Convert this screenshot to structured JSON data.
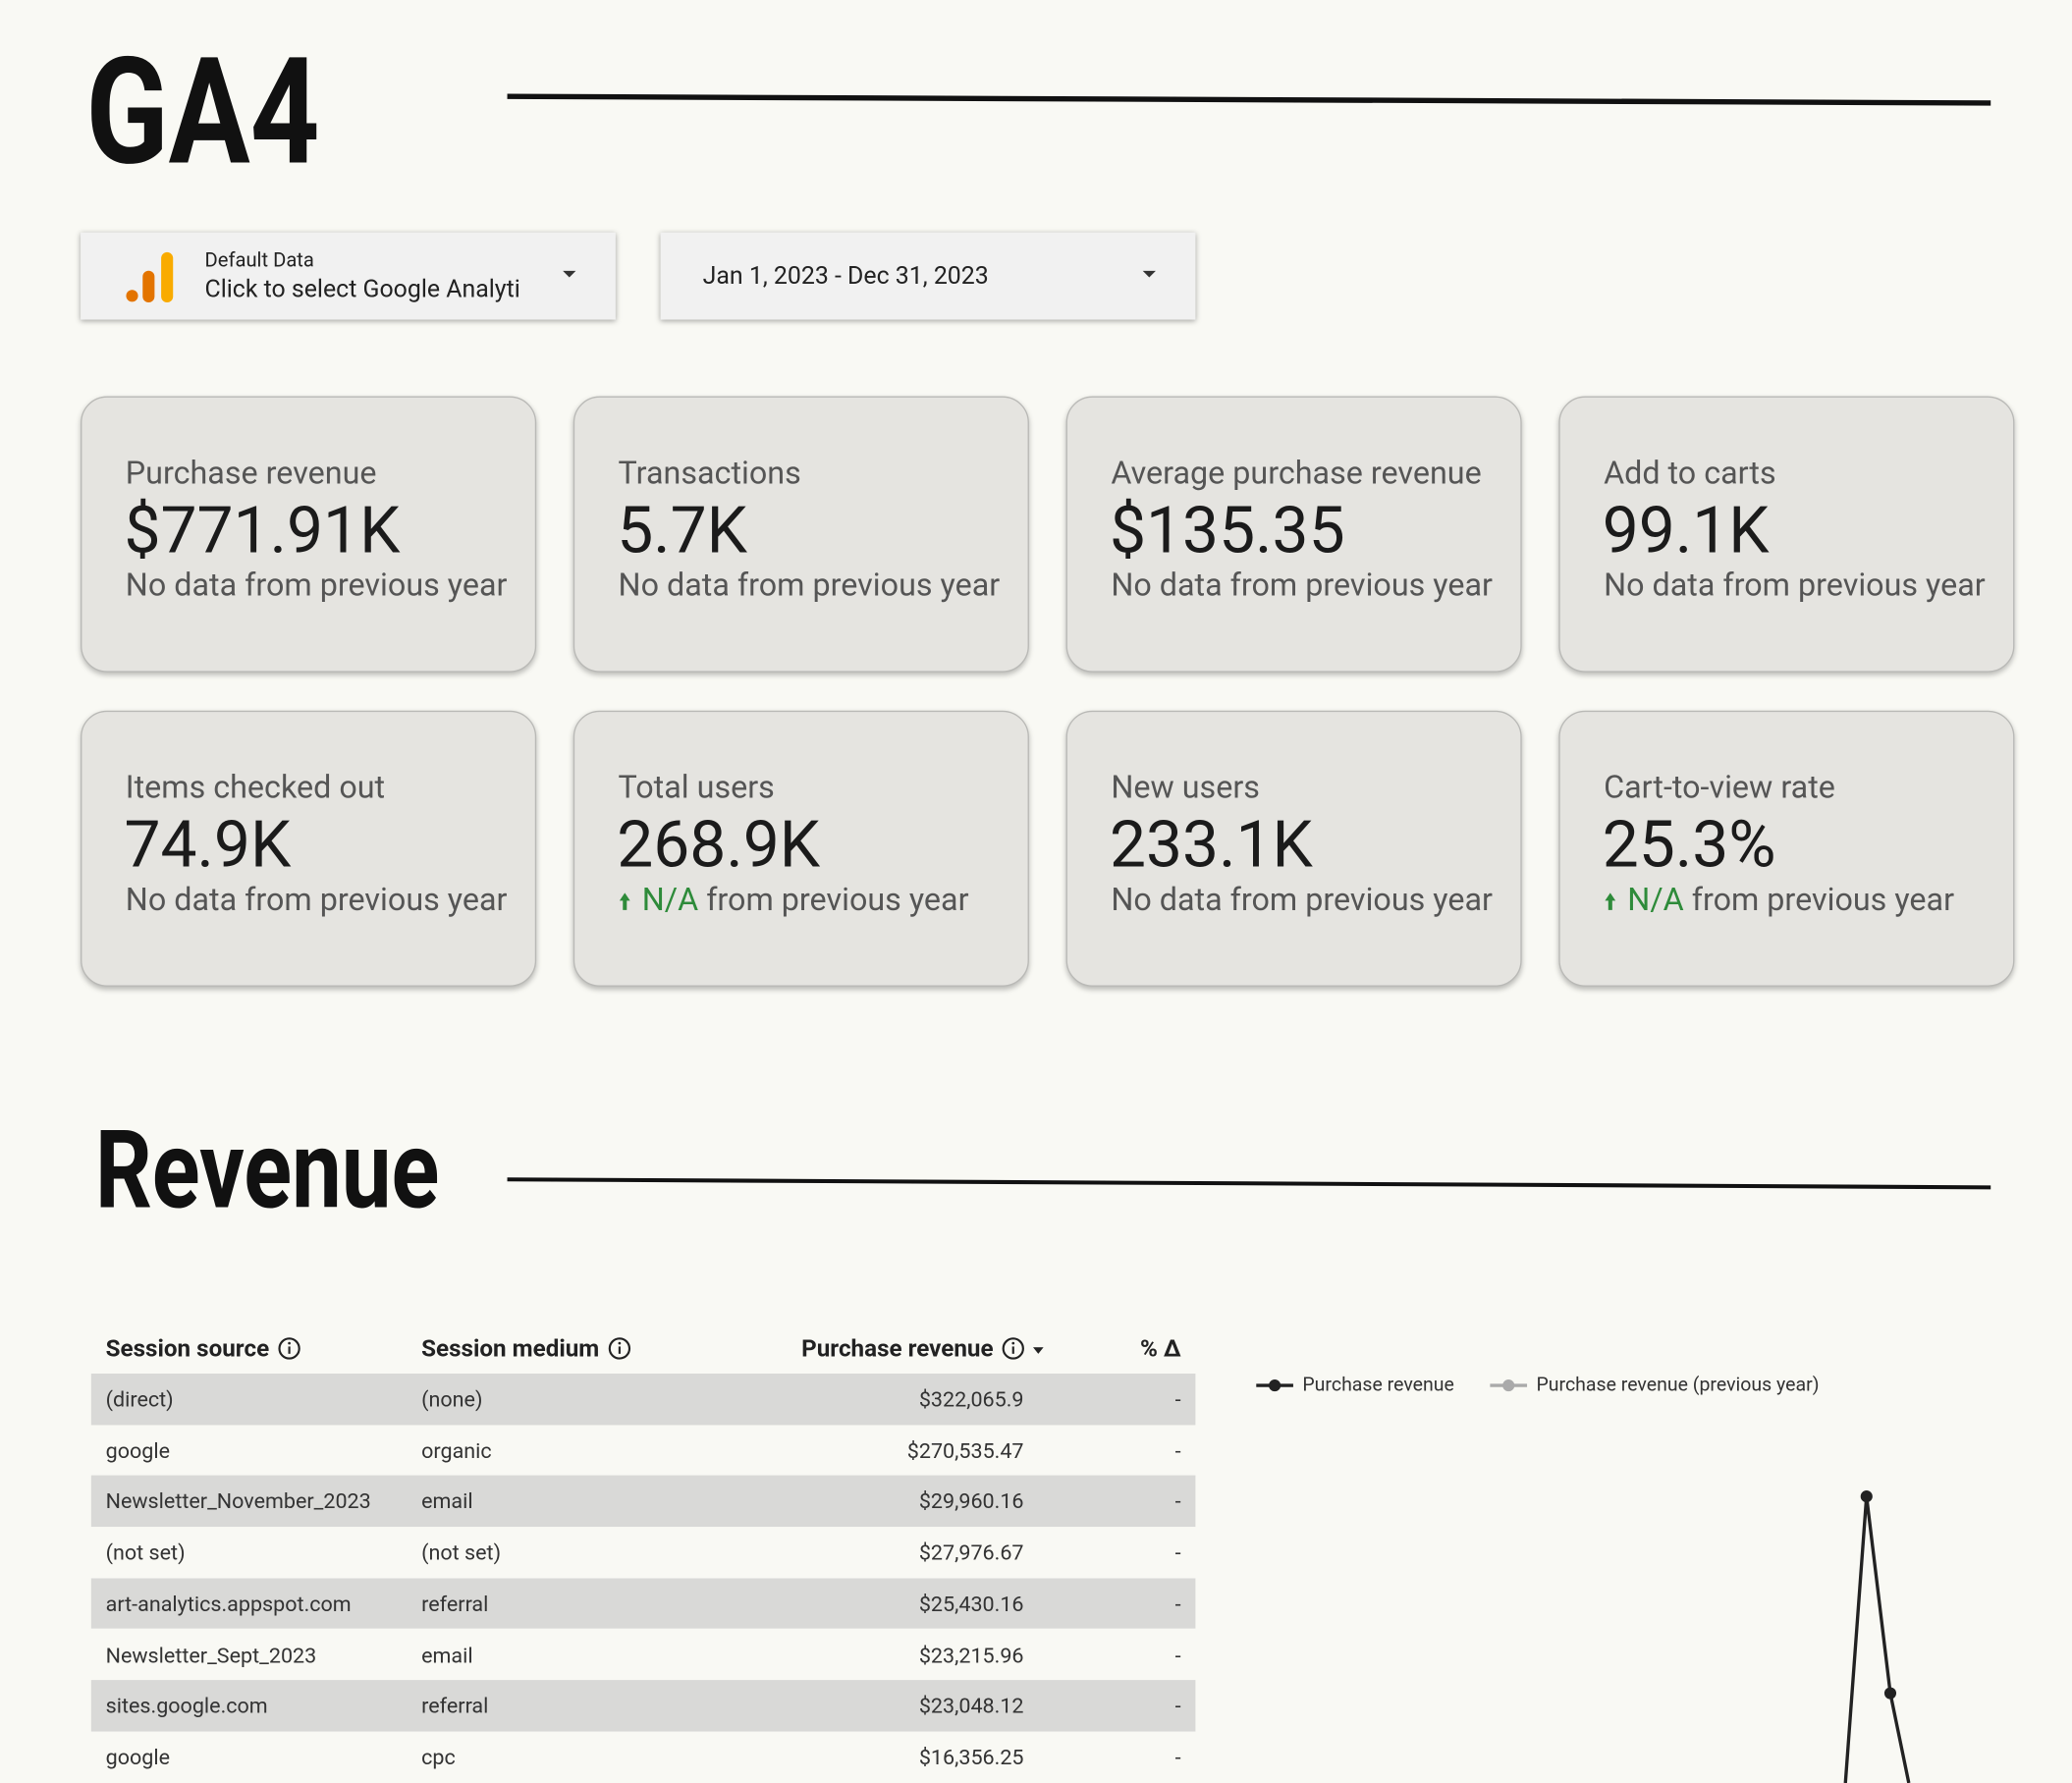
{
  "header": {
    "title": "GA4"
  },
  "controls": {
    "data_source": {
      "label": "Default Data",
      "value": "Click to select Google Analyti"
    },
    "date_range": "Jan 1, 2023 - Dec 31, 2023"
  },
  "scorecards": [
    {
      "label": "Purchase revenue",
      "value": "$771.91K",
      "comparison": "No data from previous year"
    },
    {
      "label": "Transactions",
      "value": "5.7K",
      "comparison": "No data from previous year"
    },
    {
      "label": "Average purchase revenue",
      "value": "$135.35",
      "comparison": "No data from previous year"
    },
    {
      "label": "Add to carts",
      "value": "99.1K",
      "comparison": "No data from previous year"
    },
    {
      "label": "Items checked out",
      "value": "74.9K",
      "comparison": "No data from previous year"
    },
    {
      "label": "Total users",
      "value": "268.9K",
      "delta": "N/A",
      "comparison": "from previous year"
    },
    {
      "label": "New users",
      "value": "233.1K",
      "comparison": "No data from previous year"
    },
    {
      "label": "Cart-to-view rate",
      "value": "25.3%",
      "delta": "N/A",
      "comparison": "from previous year"
    }
  ],
  "section": {
    "title": "Revenue"
  },
  "table": {
    "columns": [
      "Session source",
      "Session medium",
      "Purchase revenue",
      "% Δ"
    ],
    "rows": [
      [
        "(direct)",
        "(none)",
        "$322,065.9",
        "-"
      ],
      [
        "google",
        "organic",
        "$270,535.47",
        "-"
      ],
      [
        "Newsletter_November_2023",
        "email",
        "$29,960.16",
        "-"
      ],
      [
        "(not set)",
        "(not set)",
        "$27,976.67",
        "-"
      ],
      [
        "art-analytics.appspot.com",
        "referral",
        "$25,430.16",
        "-"
      ],
      [
        "Newsletter_Sept_2023",
        "email",
        "$23,215.96",
        "-"
      ],
      [
        "sites.google.com",
        "referral",
        "$23,048.12",
        "-"
      ],
      [
        "google",
        "cpc",
        "$16,356.25",
        "-"
      ]
    ]
  },
  "chart": {
    "legend": [
      "Purchase revenue",
      "Purchase revenue (previous year)"
    ]
  }
}
